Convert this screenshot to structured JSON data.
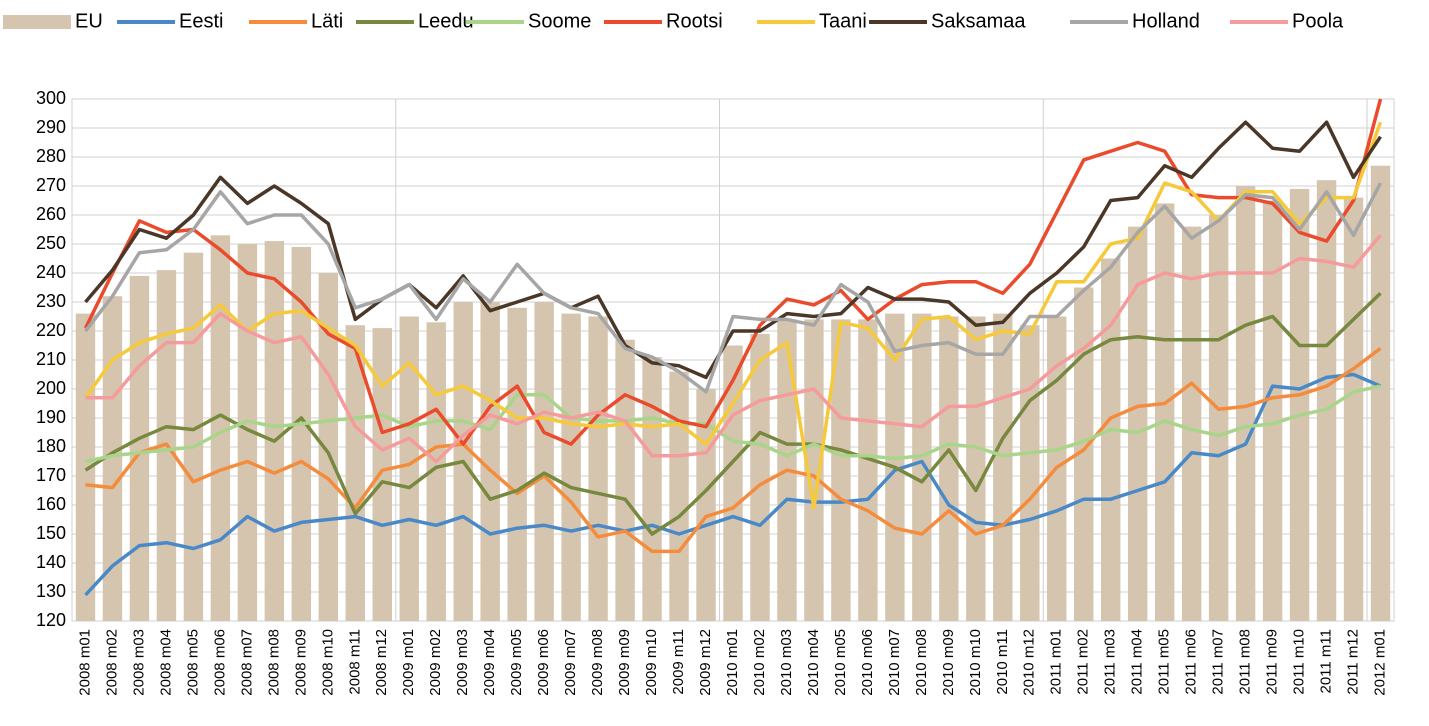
{
  "chart_data": {
    "type": "bar_line",
    "categories": [
      "2008 m01",
      "2008 m02",
      "2008 m03",
      "2008 m04",
      "2008 m05",
      "2008 m06",
      "2008 m07",
      "2008 m08",
      "2008 m09",
      "2008 m10",
      "2008 m11",
      "2008 m12",
      "2009 m01",
      "2009 m02",
      "2009 m03",
      "2009 m04",
      "2009 m05",
      "2009 m06",
      "2009 m07",
      "2009 m08",
      "2009 m09",
      "2009 m10",
      "2009 m11",
      "2009 m12",
      "2010 m01",
      "2010 m02",
      "2010 m03",
      "2010 m04",
      "2010 m05",
      "2010 m06",
      "2010 m07",
      "2010 m08",
      "2010 m09",
      "2010 m10",
      "2010 m11",
      "2010 m12",
      "2011 m01",
      "2011 m02",
      "2011 m03",
      "2011 m04",
      "2011 m05",
      "2011 m06",
      "2011 m07",
      "2011 m08",
      "2011 m09",
      "2011 m10",
      "2011 m11",
      "2011 m12",
      "2012 m01"
    ],
    "series": [
      {
        "name": "EU",
        "type": "bar",
        "color": "#d6c5ae",
        "values": [
          226,
          232,
          239,
          241,
          247,
          253,
          250,
          251,
          249,
          240,
          222,
          221,
          225,
          223,
          230,
          230,
          228,
          230,
          226,
          225,
          217,
          211,
          206,
          200,
          215,
          219,
          224,
          224,
          224,
          224,
          226,
          226,
          225,
          225,
          226,
          222,
          225,
          235,
          245,
          256,
          264,
          256,
          260,
          270,
          265,
          269,
          272,
          266,
          277
        ]
      },
      {
        "name": "Eesti",
        "type": "line",
        "color": "#4a89c8",
        "values": [
          129,
          139,
          146,
          147,
          145,
          148,
          156,
          151,
          154,
          155,
          156,
          153,
          155,
          153,
          156,
          150,
          152,
          153,
          151,
          153,
          151,
          153,
          150,
          153,
          156,
          153,
          162,
          161,
          161,
          162,
          172,
          175,
          160,
          154,
          153,
          155,
          158,
          162,
          162,
          165,
          168,
          178,
          177,
          181,
          201,
          200,
          204,
          205,
          201
        ]
      },
      {
        "name": "Läti",
        "type": "line",
        "color": "#f58b3c",
        "values": [
          167,
          166,
          178,
          181,
          168,
          172,
          175,
          171,
          175,
          169,
          159,
          172,
          174,
          180,
          181,
          172,
          164,
          170,
          161,
          149,
          151,
          144,
          144,
          156,
          159,
          167,
          172,
          170,
          162,
          158,
          152,
          150,
          158,
          150,
          153,
          162,
          173,
          179,
          190,
          194,
          195,
          202,
          193,
          194,
          197,
          198,
          201,
          207,
          214
        ]
      },
      {
        "name": "Leedu",
        "type": "line",
        "color": "#77883f",
        "values": [
          172,
          178,
          183,
          187,
          186,
          191,
          186,
          182,
          190,
          178,
          157,
          168,
          166,
          173,
          175,
          162,
          165,
          171,
          166,
          164,
          162,
          150,
          156,
          165,
          175,
          185,
          181,
          181,
          179,
          176,
          173,
          168,
          179,
          165,
          183,
          196,
          203,
          212,
          217,
          218,
          217,
          217,
          217,
          222,
          225,
          215,
          215,
          224,
          233
        ]
      },
      {
        "name": "Soome",
        "type": "line",
        "color": "#a8d58a",
        "values": [
          175,
          177,
          178,
          179,
          180,
          185,
          189,
          187,
          188,
          189,
          190,
          191,
          187,
          189,
          189,
          186,
          198,
          198,
          190,
          189,
          189,
          190,
          188,
          188,
          182,
          181,
          177,
          181,
          177,
          177,
          176,
          177,
          181,
          180,
          177,
          178,
          179,
          182,
          186,
          185,
          189,
          186,
          184,
          187,
          188,
          191,
          193,
          199,
          201
        ]
      },
      {
        "name": "Rootsi",
        "type": "line",
        "color": "#ea4b2c",
        "values": [
          221,
          240,
          258,
          254,
          255,
          248,
          240,
          238,
          230,
          219,
          214,
          185,
          188,
          193,
          181,
          194,
          201,
          185,
          181,
          191,
          198,
          194,
          189,
          187,
          203,
          222,
          231,
          229,
          234,
          224,
          231,
          236,
          237,
          237,
          233,
          243,
          261,
          279,
          282,
          285,
          282,
          267,
          266,
          266,
          264,
          254,
          251,
          265,
          300
        ]
      },
      {
        "name": "Taani",
        "type": "line",
        "color": "#f5c93a",
        "values": [
          197,
          210,
          216,
          219,
          221,
          229,
          220,
          226,
          227,
          221,
          215,
          201,
          209,
          198,
          201,
          196,
          190,
          190,
          188,
          187,
          188,
          187,
          188,
          181,
          195,
          210,
          216,
          159,
          223,
          221,
          210,
          224,
          225,
          217,
          220,
          219,
          237,
          237,
          250,
          252,
          271,
          268,
          258,
          268,
          268,
          257,
          266,
          266,
          292
        ]
      },
      {
        "name": "Saksamaa",
        "type": "line",
        "color": "#4a3727",
        "values": [
          230,
          241,
          255,
          252,
          260,
          273,
          264,
          270,
          264,
          257,
          224,
          231,
          236,
          228,
          239,
          227,
          230,
          233,
          228,
          232,
          215,
          209,
          208,
          204,
          220,
          220,
          226,
          225,
          226,
          235,
          231,
          231,
          230,
          222,
          223,
          233,
          240,
          249,
          265,
          266,
          277,
          273,
          283,
          292,
          283,
          282,
          292,
          273,
          287
        ]
      },
      {
        "name": "Holland",
        "type": "line",
        "color": "#a6a6a6",
        "values": [
          220,
          232,
          247,
          248,
          255,
          268,
          257,
          260,
          260,
          250,
          228,
          231,
          236,
          224,
          238,
          230,
          243,
          233,
          228,
          226,
          214,
          211,
          206,
          199,
          225,
          224,
          224,
          222,
          236,
          230,
          213,
          215,
          216,
          212,
          212,
          225,
          225,
          234,
          242,
          254,
          263,
          252,
          258,
          267,
          266,
          255,
          268,
          253,
          271
        ]
      },
      {
        "name": "Poola",
        "type": "line",
        "color": "#f59b9b",
        "values": [
          197,
          197,
          208,
          216,
          216,
          226,
          220,
          216,
          218,
          205,
          187,
          179,
          183,
          175,
          184,
          191,
          188,
          192,
          190,
          192,
          189,
          177,
          177,
          178,
          191,
          196,
          198,
          200,
          190,
          189,
          188,
          187,
          194,
          194,
          197,
          200,
          208,
          214,
          222,
          236,
          240,
          238,
          240,
          240,
          240,
          245,
          244,
          242,
          253
        ]
      }
    ],
    "ylim": [
      120,
      300
    ],
    "yticks": [
      120,
      130,
      140,
      150,
      160,
      170,
      180,
      190,
      200,
      210,
      220,
      230,
      240,
      250,
      260,
      270,
      280,
      290,
      300
    ],
    "grid": true,
    "legend": "top"
  }
}
